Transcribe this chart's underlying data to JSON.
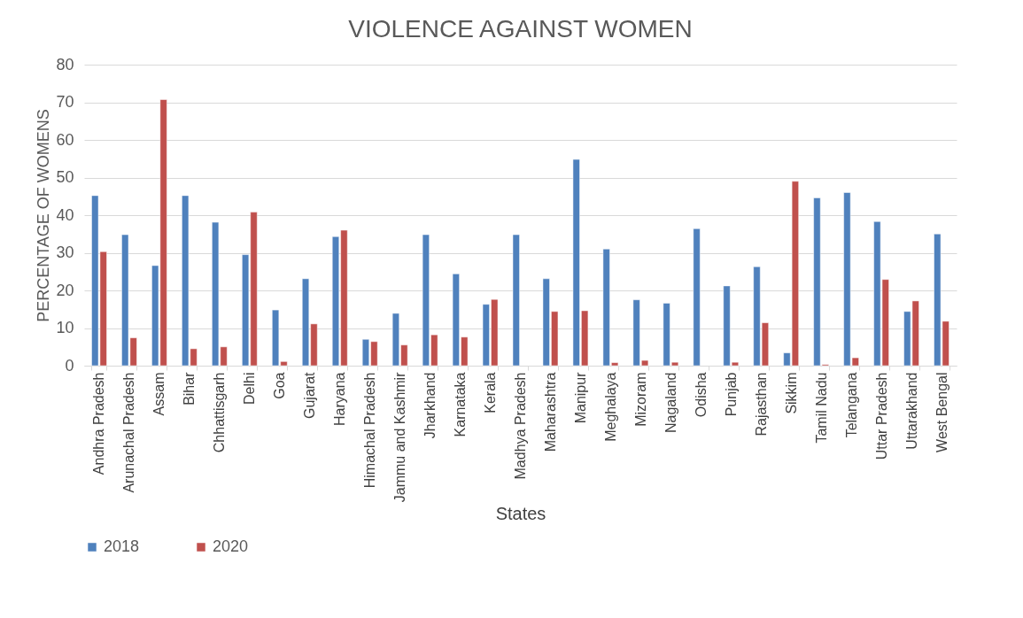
{
  "chart_data": {
    "type": "bar",
    "title": "VIOLENCE AGAINST WOMEN",
    "xlabel": "States",
    "ylabel": "PERCENTAGE OF WOMENS",
    "categories": [
      "Andhra Pradesh",
      "Arunachal Pradesh",
      "Assam",
      "Bihar",
      "Chhattisgarh",
      "Delhi",
      "Goa",
      "Gujarat",
      "Haryana",
      "Himachal Pradesh",
      "Jammu and Kashmir",
      "Jharkhand",
      "Karnataka",
      "Kerala",
      "Madhya Pradesh",
      "Maharashtra",
      "Manipur",
      "Meghalaya",
      "Mizoram",
      "Nagaland",
      "Odisha",
      "Punjab",
      "Rajasthan",
      "Sikkim",
      "Tamil Nadu",
      "Telangana",
      "Uttar Pradesh",
      "Uttarakhand",
      "West Bengal"
    ],
    "series": [
      {
        "name": "2018",
        "color": "#4f81bd",
        "values": [
          45.2,
          34.8,
          26.6,
          45.2,
          38.1,
          29.5,
          14.8,
          23.1,
          34.3,
          7.0,
          13.9,
          34.8,
          24.4,
          16.3,
          34.8,
          23.1,
          54.8,
          31.0,
          17.5,
          16.6,
          36.4,
          21.2,
          26.3,
          3.4,
          44.6,
          46.0,
          38.3,
          14.4,
          35.0
        ]
      },
      {
        "name": "2020",
        "color": "#c0504d",
        "values": [
          30.3,
          7.4,
          70.7,
          4.5,
          5.0,
          40.8,
          1.1,
          11.1,
          36.0,
          6.4,
          5.5,
          8.2,
          7.6,
          17.6,
          null,
          14.4,
          14.6,
          0.8,
          1.4,
          0.9,
          null,
          0.9,
          11.4,
          49.0,
          0.3,
          2.1,
          22.9,
          17.2,
          11.8
        ]
      }
    ],
    "ylim": [
      0,
      80
    ],
    "yticks": [
      0,
      10,
      20,
      30,
      40,
      50,
      60,
      70,
      80
    ],
    "grid": "y",
    "legend": "bottom"
  }
}
